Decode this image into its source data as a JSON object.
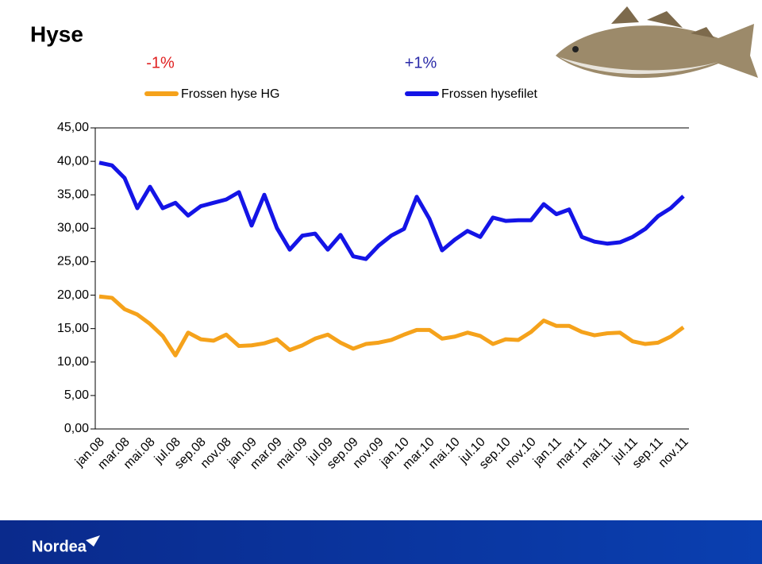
{
  "title": "Hyse",
  "footer": {
    "logo": "Nordea"
  },
  "chart_data": {
    "type": "line",
    "annotations": [
      {
        "text": "-1%",
        "color": "#e02020"
      },
      {
        "text": "+1%",
        "color": "#2a2aa8"
      }
    ],
    "categories": [
      "jan.08",
      null,
      "mar.08",
      null,
      "mai.08",
      null,
      "jul.08",
      null,
      "sep.08",
      null,
      "nov.08",
      null,
      "jan.09",
      null,
      "mar.09",
      null,
      "mai.09",
      null,
      "jul.09",
      null,
      "sep.09",
      null,
      "nov.09",
      null,
      "jan.10",
      null,
      "mar.10",
      null,
      "mai.10",
      null,
      "jul.10",
      null,
      "sep.10",
      null,
      "nov.10",
      null,
      "jan.11",
      null,
      "mar.11",
      null,
      "mai.11",
      null,
      "jul.11",
      null,
      "sep.11",
      null,
      "nov.11"
    ],
    "series": [
      {
        "name": "Frossen hyse HG",
        "color": "#f5a21b",
        "values": [
          19.8,
          19.6,
          17.9,
          17.1,
          15.7,
          13.9,
          11.0,
          14.4,
          13.4,
          13.2,
          14.1,
          12.4,
          12.5,
          12.8,
          13.4,
          11.8,
          12.5,
          13.5,
          14.1,
          12.9,
          12.0,
          12.7,
          12.9,
          13.3,
          14.1,
          14.8,
          14.8,
          13.5,
          13.8,
          14.4,
          13.9,
          12.7,
          13.4,
          13.3,
          14.5,
          16.2,
          15.4,
          15.4,
          14.5,
          14.0,
          14.3,
          14.4,
          13.1,
          12.7,
          12.9,
          13.8,
          15.2
        ]
      },
      {
        "name": "Frossen hysefilet",
        "color": "#1414e6",
        "values": [
          39.8,
          39.4,
          37.5,
          33.0,
          36.2,
          33.0,
          33.8,
          31.9,
          33.3,
          33.8,
          34.3,
          35.4,
          30.4,
          35.0,
          30.0,
          26.8,
          28.9,
          29.2,
          26.8,
          29.0,
          25.8,
          25.4,
          27.4,
          28.9,
          29.9,
          34.7,
          31.4,
          26.7,
          28.3,
          29.6,
          28.7,
          31.6,
          31.1,
          31.2,
          31.2,
          33.6,
          32.1,
          32.8,
          28.7,
          28.0,
          27.7,
          27.9,
          28.7,
          29.9,
          31.8,
          33.0,
          34.8
        ]
      }
    ],
    "ylim": [
      0,
      45
    ],
    "yticks": [
      {
        "value": 0,
        "label": "0,00"
      },
      {
        "value": 5,
        "label": "5,00"
      },
      {
        "value": 10,
        "label": "10,00"
      },
      {
        "value": 15,
        "label": "15,00"
      },
      {
        "value": 20,
        "label": "20,00"
      },
      {
        "value": 25,
        "label": "25,00"
      },
      {
        "value": 30,
        "label": "30,00"
      },
      {
        "value": 35,
        "label": "35,00"
      },
      {
        "value": 40,
        "label": "40,00"
      },
      {
        "value": 45,
        "label": "45,00"
      }
    ],
    "grid": false
  }
}
